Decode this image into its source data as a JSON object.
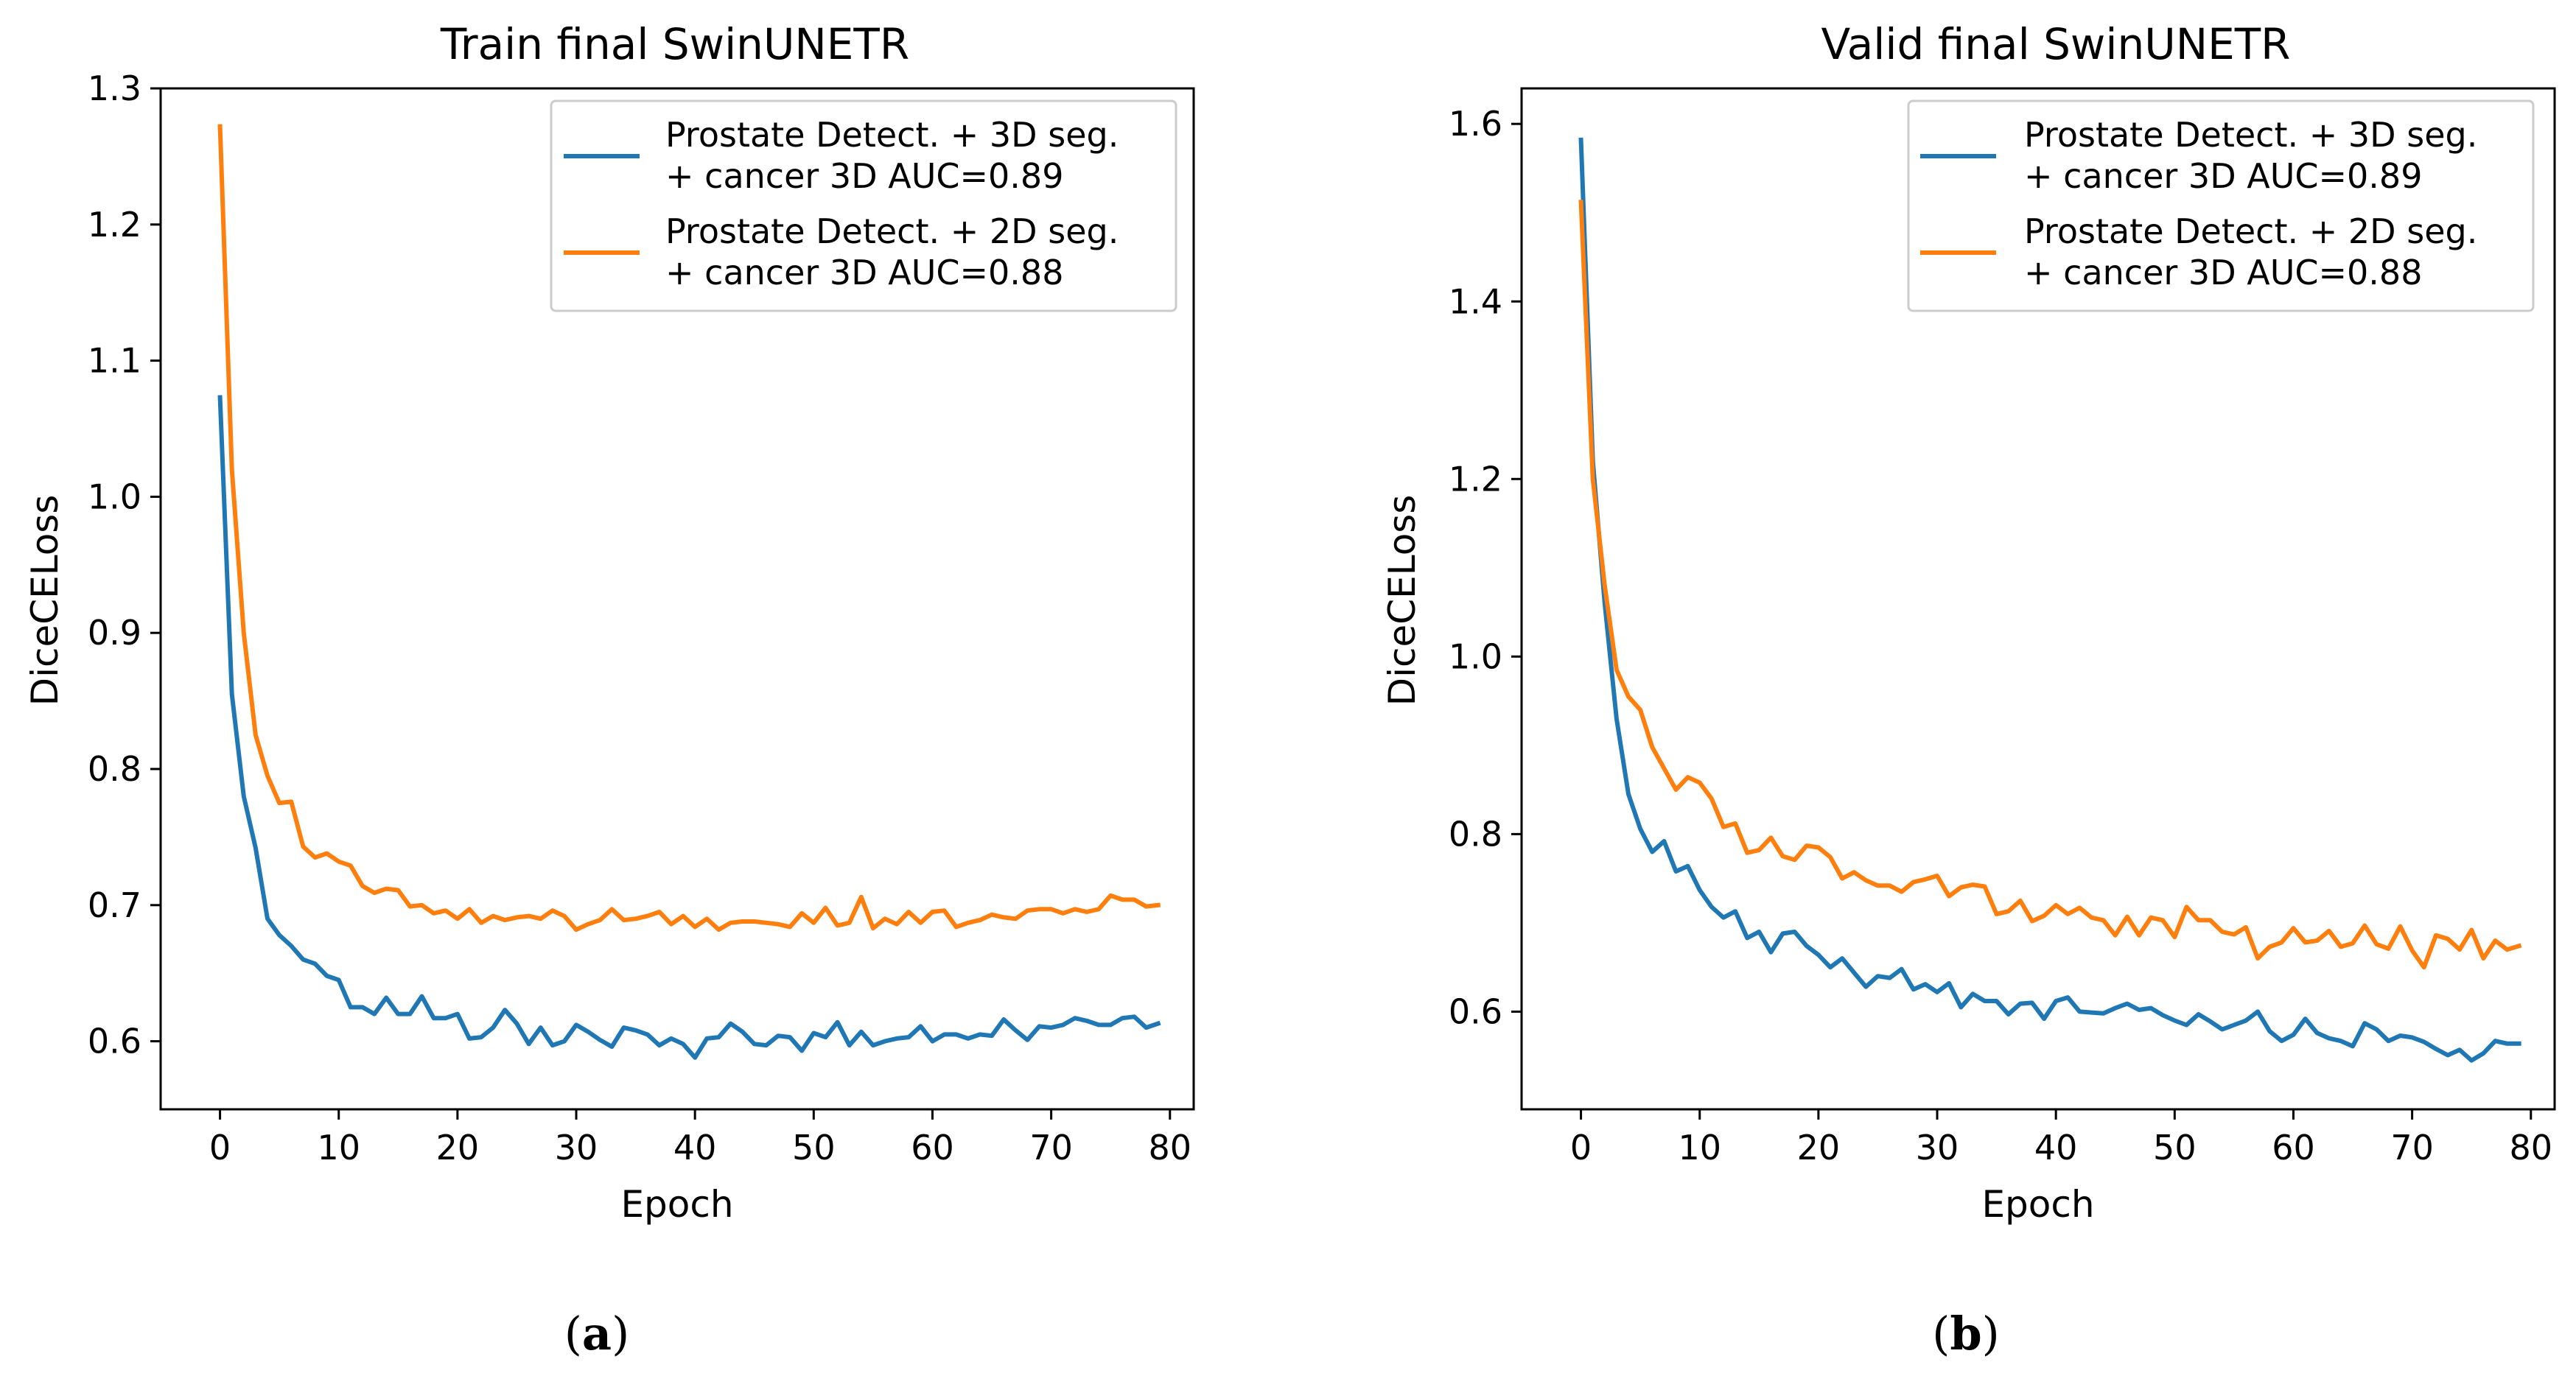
{
  "colors": {
    "series_3d": "#1f77b4",
    "series_2d": "#ff7f0e",
    "axes": "#000000",
    "legend_border": "#cccccc"
  },
  "chart_data": [
    {
      "type": "line",
      "title": "Train final SwinUNETR",
      "xlabel": "Epoch",
      "ylabel": "DiceCELoss",
      "caption_letter": "a",
      "caption_open": "(",
      "caption_close": ")",
      "xlim": [
        -5,
        82
      ],
      "ylim": [
        0.55,
        1.3
      ],
      "xticks": [
        0,
        10,
        20,
        30,
        40,
        50,
        60,
        70,
        80
      ],
      "xtick_labels": [
        "0",
        "10",
        "20",
        "30",
        "40",
        "50",
        "60",
        "70",
        "80"
      ],
      "yticks": [
        0.6,
        0.7,
        0.8,
        0.9,
        1.0,
        1.1,
        1.2,
        1.3
      ],
      "ytick_labels": [
        "0.6",
        "0.7",
        "0.8",
        "0.9",
        "1.0",
        "1.1",
        "1.2",
        "1.3"
      ],
      "grid": false,
      "legend_position": "top-right",
      "series": [
        {
          "name_line1": "Prostate Detect. + 3D seg.",
          "name_line2": "+ cancer 3D AUC=0.89",
          "color": "#1f77b4",
          "values": [
            1.073,
            0.855,
            0.78,
            0.742,
            0.69,
            0.678,
            0.67,
            0.66,
            0.657,
            0.648,
            0.645,
            0.625,
            0.625,
            0.62,
            0.632,
            0.62,
            0.62,
            0.633,
            0.617,
            0.617,
            0.62,
            0.602,
            0.603,
            0.61,
            0.623,
            0.613,
            0.598,
            0.61,
            0.597,
            0.6,
            0.612,
            0.607,
            0.601,
            0.596,
            0.61,
            0.608,
            0.605,
            0.597,
            0.602,
            0.598,
            0.588,
            0.602,
            0.603,
            0.613,
            0.607,
            0.598,
            0.597,
            0.604,
            0.603,
            0.593,
            0.606,
            0.603,
            0.614,
            0.597,
            0.607,
            0.597,
            0.6,
            0.602,
            0.603,
            0.611,
            0.6,
            0.605,
            0.605,
            0.602,
            0.605,
            0.604,
            0.616,
            0.608,
            0.601,
            0.611,
            0.61,
            0.612,
            0.617,
            0.615,
            0.612,
            0.612,
            0.617,
            0.618,
            0.61,
            0.613
          ]
        },
        {
          "name_line1": "Prostate Detect. + 2D seg.",
          "name_line2": "+ cancer 3D AUC=0.88",
          "color": "#ff7f0e",
          "values": [
            1.272,
            1.02,
            0.9,
            0.825,
            0.795,
            0.775,
            0.776,
            0.743,
            0.735,
            0.738,
            0.732,
            0.729,
            0.714,
            0.709,
            0.712,
            0.711,
            0.699,
            0.7,
            0.694,
            0.696,
            0.69,
            0.697,
            0.687,
            0.692,
            0.689,
            0.691,
            0.692,
            0.69,
            0.696,
            0.692,
            0.682,
            0.686,
            0.689,
            0.697,
            0.689,
            0.69,
            0.692,
            0.695,
            0.686,
            0.692,
            0.684,
            0.69,
            0.682,
            0.687,
            0.688,
            0.688,
            0.687,
            0.686,
            0.684,
            0.694,
            0.687,
            0.698,
            0.685,
            0.687,
            0.706,
            0.683,
            0.69,
            0.686,
            0.695,
            0.687,
            0.695,
            0.696,
            0.684,
            0.687,
            0.689,
            0.693,
            0.691,
            0.69,
            0.696,
            0.697,
            0.697,
            0.694,
            0.697,
            0.695,
            0.697,
            0.707,
            0.704,
            0.704,
            0.699,
            0.7
          ]
        }
      ]
    },
    {
      "type": "line",
      "title": "Valid final SwinUNETR",
      "xlabel": "Epoch",
      "ylabel": "DiceCELoss",
      "caption_letter": "b",
      "caption_open": "(",
      "caption_close": ")",
      "xlim": [
        -5,
        82
      ],
      "ylim": [
        0.49,
        1.64
      ],
      "xticks": [
        0,
        10,
        20,
        30,
        40,
        50,
        60,
        70,
        80
      ],
      "xtick_labels": [
        "0",
        "10",
        "20",
        "30",
        "40",
        "50",
        "60",
        "70",
        "80"
      ],
      "yticks": [
        0.6,
        0.8,
        1.0,
        1.2,
        1.4,
        1.6
      ],
      "ytick_labels": [
        "0.6",
        "0.8",
        "1.0",
        "1.2",
        "1.4",
        "1.6"
      ],
      "grid": false,
      "legend_position": "top-right",
      "series": [
        {
          "name_line1": "Prostate Detect. + 3D seg.",
          "name_line2": "+ cancer 3D AUC=0.89",
          "color": "#1f77b4",
          "values": [
            1.582,
            1.22,
            1.06,
            0.93,
            0.845,
            0.806,
            0.78,
            0.792,
            0.758,
            0.764,
            0.737,
            0.718,
            0.706,
            0.713,
            0.683,
            0.69,
            0.667,
            0.688,
            0.69,
            0.674,
            0.664,
            0.65,
            0.66,
            0.644,
            0.628,
            0.64,
            0.638,
            0.648,
            0.625,
            0.631,
            0.622,
            0.632,
            0.605,
            0.62,
            0.612,
            0.612,
            0.597,
            0.609,
            0.61,
            0.592,
            0.612,
            0.616,
            0.6,
            0.599,
            0.598,
            0.604,
            0.609,
            0.602,
            0.604,
            0.596,
            0.59,
            0.585,
            0.597,
            0.589,
            0.58,
            0.585,
            0.59,
            0.6,
            0.578,
            0.567,
            0.574,
            0.592,
            0.576,
            0.57,
            0.567,
            0.561,
            0.587,
            0.58,
            0.567,
            0.573,
            0.571,
            0.566,
            0.558,
            0.551,
            0.557,
            0.545,
            0.553,
            0.567,
            0.564,
            0.564
          ]
        },
        {
          "name_line1": "Prostate Detect. + 2D seg.",
          "name_line2": "+ cancer 3D AUC=0.88",
          "color": "#ff7f0e",
          "values": [
            1.512,
            1.2,
            1.08,
            0.985,
            0.955,
            0.94,
            0.898,
            0.874,
            0.85,
            0.864,
            0.858,
            0.84,
            0.808,
            0.812,
            0.779,
            0.782,
            0.796,
            0.775,
            0.771,
            0.787,
            0.785,
            0.774,
            0.75,
            0.757,
            0.748,
            0.742,
            0.742,
            0.735,
            0.746,
            0.749,
            0.753,
            0.73,
            0.74,
            0.743,
            0.741,
            0.71,
            0.713,
            0.725,
            0.702,
            0.708,
            0.72,
            0.71,
            0.717,
            0.706,
            0.703,
            0.686,
            0.707,
            0.686,
            0.706,
            0.703,
            0.684,
            0.718,
            0.703,
            0.703,
            0.69,
            0.687,
            0.695,
            0.66,
            0.673,
            0.678,
            0.694,
            0.678,
            0.68,
            0.691,
            0.673,
            0.677,
            0.697,
            0.676,
            0.671,
            0.696,
            0.669,
            0.65,
            0.686,
            0.682,
            0.67,
            0.692,
            0.66,
            0.68,
            0.67,
            0.674
          ]
        }
      ]
    }
  ]
}
